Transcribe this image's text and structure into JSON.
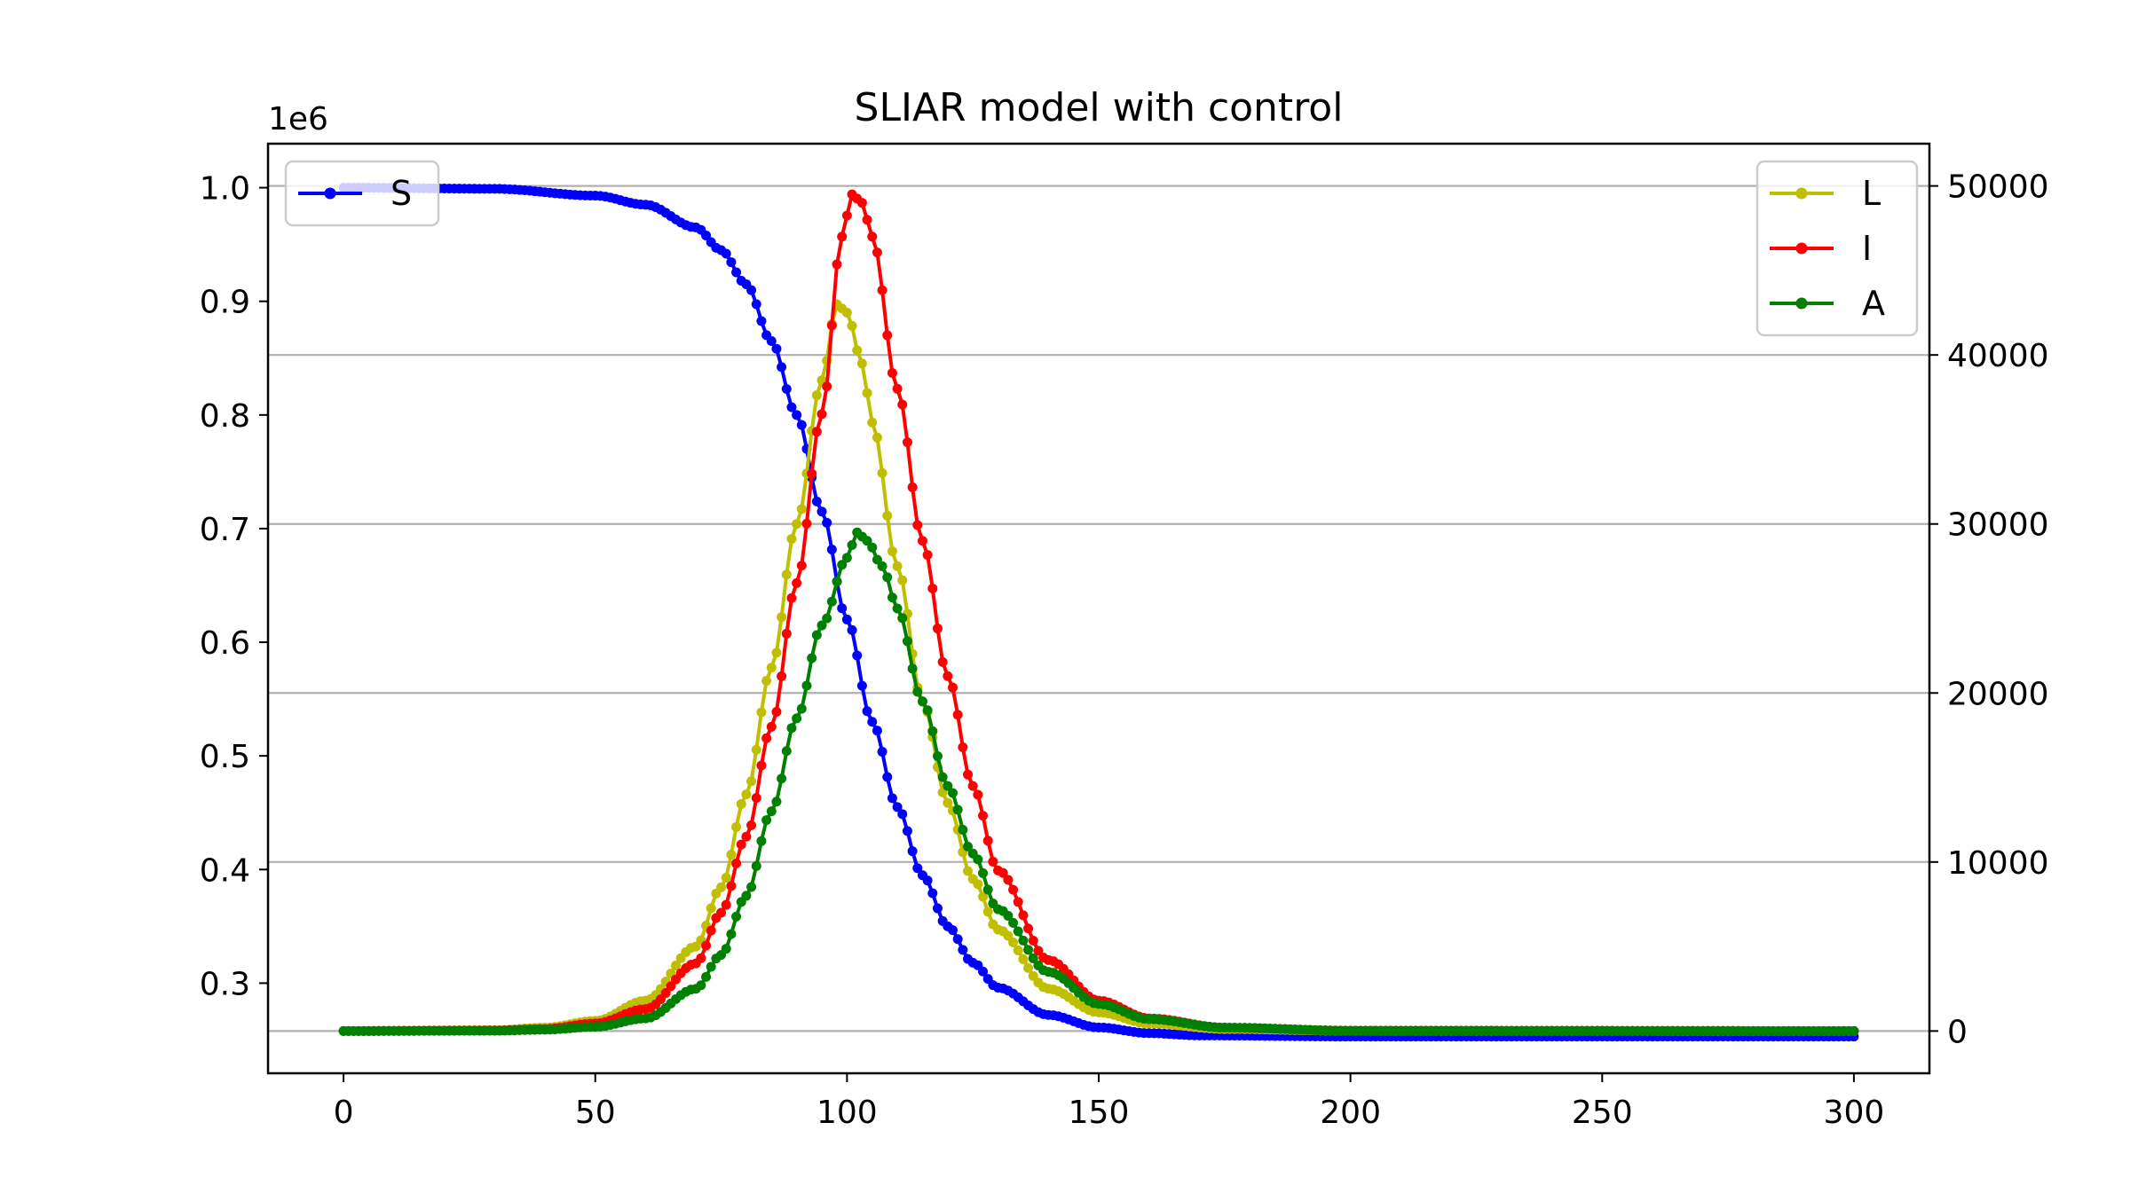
{
  "chart_data": {
    "type": "line",
    "title": "SLIAR model with control",
    "xlabel": "",
    "ylabel": "",
    "y_offset_label": "1e6",
    "xlim": [
      -15,
      315
    ],
    "ylim_left": [
      0.2207,
      1.0387
    ],
    "ylim_right": [
      -2500,
      52500
    ],
    "x_ticks": [
      0,
      50,
      100,
      150,
      200,
      250,
      300
    ],
    "x_tick_labels": [
      "0",
      "50",
      "100",
      "150",
      "200",
      "250",
      "300"
    ],
    "y_ticks_left": [
      0.3,
      0.4,
      0.5,
      0.6,
      0.7,
      0.8,
      0.9,
      1.0
    ],
    "y_tick_labels_left": [
      "0.3",
      "0.4",
      "0.5",
      "0.6",
      "0.7",
      "0.8",
      "0.9",
      "1.0"
    ],
    "y_ticks_right": [
      0,
      10000,
      20000,
      30000,
      40000,
      50000
    ],
    "y_tick_labels_right": [
      "0",
      "10000",
      "20000",
      "30000",
      "40000",
      "50000"
    ],
    "grid": "horizontal lines at right-axis ticks",
    "legend_left": {
      "placement": "upper-left",
      "entries": [
        "S"
      ]
    },
    "legend_right": {
      "placement": "upper-right",
      "entries": [
        "L",
        "I",
        "A"
      ]
    },
    "x_range": [
      0,
      300
    ],
    "series": [
      {
        "name": "S",
        "axis": "left",
        "color": "#0000ff",
        "points": [
          [
            0,
            1.0
          ],
          [
            30,
            0.999
          ],
          [
            50,
            0.993
          ],
          [
            60,
            0.985
          ],
          [
            70,
            0.965
          ],
          [
            75,
            0.945
          ],
          [
            80,
            0.915
          ],
          [
            85,
            0.865
          ],
          [
            90,
            0.8
          ],
          [
            95,
            0.715
          ],
          [
            100,
            0.62
          ],
          [
            105,
            0.53
          ],
          [
            110,
            0.455
          ],
          [
            115,
            0.395
          ],
          [
            120,
            0.35
          ],
          [
            125,
            0.318
          ],
          [
            130,
            0.296
          ],
          [
            140,
            0.272
          ],
          [
            150,
            0.261
          ],
          [
            160,
            0.256
          ],
          [
            170,
            0.254
          ],
          [
            200,
            0.253
          ],
          [
            300,
            0.253
          ]
        ]
      },
      {
        "name": "L",
        "axis": "right",
        "color": "#bfbf00",
        "points": [
          [
            0,
            0
          ],
          [
            30,
            50
          ],
          [
            40,
            200
          ],
          [
            50,
            600
          ],
          [
            60,
            1800
          ],
          [
            70,
            5000
          ],
          [
            75,
            8500
          ],
          [
            80,
            14000
          ],
          [
            85,
            21500
          ],
          [
            90,
            30000
          ],
          [
            95,
            38500
          ],
          [
            98,
            43000
          ],
          [
            100,
            42500
          ],
          [
            103,
            39500
          ],
          [
            105,
            36000
          ],
          [
            110,
            27500
          ],
          [
            115,
            19500
          ],
          [
            120,
            13500
          ],
          [
            125,
            9000
          ],
          [
            130,
            6000
          ],
          [
            140,
            2500
          ],
          [
            150,
            1100
          ],
          [
            160,
            450
          ],
          [
            175,
            120
          ],
          [
            200,
            10
          ],
          [
            300,
            0
          ]
        ]
      },
      {
        "name": "I",
        "axis": "right",
        "color": "#ff0000",
        "points": [
          [
            0,
            0
          ],
          [
            30,
            30
          ],
          [
            40,
            120
          ],
          [
            50,
            450
          ],
          [
            60,
            1300
          ],
          [
            70,
            4000
          ],
          [
            75,
            7000
          ],
          [
            80,
            11500
          ],
          [
            85,
            18000
          ],
          [
            90,
            26500
          ],
          [
            95,
            36500
          ],
          [
            99,
            47000
          ],
          [
            101,
            49500
          ],
          [
            103,
            49000
          ],
          [
            105,
            47000
          ],
          [
            110,
            38000
          ],
          [
            115,
            29000
          ],
          [
            120,
            21000
          ],
          [
            125,
            14500
          ],
          [
            130,
            9500
          ],
          [
            140,
            4200
          ],
          [
            150,
            1800
          ],
          [
            160,
            750
          ],
          [
            175,
            200
          ],
          [
            200,
            20
          ],
          [
            300,
            0
          ]
        ]
      },
      {
        "name": "A",
        "axis": "right",
        "color": "#008000",
        "points": [
          [
            0,
            0
          ],
          [
            30,
            20
          ],
          [
            40,
            80
          ],
          [
            50,
            250
          ],
          [
            60,
            750
          ],
          [
            70,
            2500
          ],
          [
            75,
            4500
          ],
          [
            80,
            8000
          ],
          [
            85,
            13000
          ],
          [
            90,
            18500
          ],
          [
            95,
            24000
          ],
          [
            100,
            28000
          ],
          [
            102,
            29500
          ],
          [
            104,
            29000
          ],
          [
            107,
            27500
          ],
          [
            110,
            25000
          ],
          [
            115,
            19500
          ],
          [
            120,
            14500
          ],
          [
            125,
            10500
          ],
          [
            130,
            7200
          ],
          [
            140,
            3500
          ],
          [
            150,
            1600
          ],
          [
            160,
            700
          ],
          [
            175,
            200
          ],
          [
            200,
            20
          ],
          [
            300,
            0
          ]
        ]
      }
    ]
  }
}
